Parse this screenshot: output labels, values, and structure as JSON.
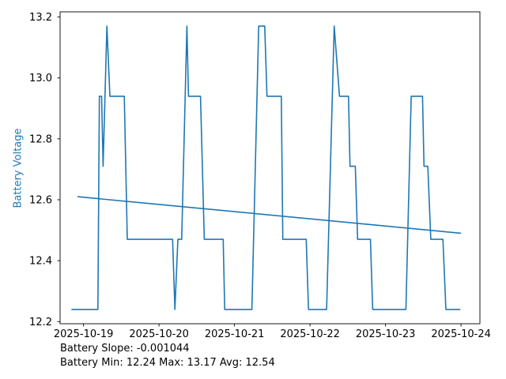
{
  "chart_data": {
    "type": "line",
    "title": "",
    "xlabel": "",
    "ylabel": "Battery Voltage",
    "x_unit": "days since 2025-10-19 00:00",
    "xlim": [
      -0.31,
      5.25
    ],
    "ylim": [
      12.193,
      13.217
    ],
    "grid": false,
    "legend": "none",
    "x_ticks": [
      {
        "t": 0,
        "label": "2025-10-19"
      },
      {
        "t": 1,
        "label": "2025-10-20"
      },
      {
        "t": 2,
        "label": "2025-10-21"
      },
      {
        "t": 3,
        "label": "2025-10-22"
      },
      {
        "t": 4,
        "label": "2025-10-23"
      },
      {
        "t": 5,
        "label": "2025-10-24"
      }
    ],
    "y_ticks": [
      {
        "v": 12.2,
        "label": "12.2"
      },
      {
        "v": 12.4,
        "label": "12.4"
      },
      {
        "v": 12.6,
        "label": "12.6"
      },
      {
        "v": 12.8,
        "label": "12.8"
      },
      {
        "v": 13.0,
        "label": "13.0"
      },
      {
        "v": 13.2,
        "label": "13.2"
      }
    ],
    "series": [
      {
        "name": "battery-voltage",
        "color": "#1f77b4",
        "width": 1.6,
        "points": [
          [
            -0.16,
            12.24
          ],
          [
            0.19,
            12.24
          ],
          [
            0.21,
            12.94
          ],
          [
            0.24,
            12.94
          ],
          [
            0.26,
            12.71
          ],
          [
            0.31,
            13.17
          ],
          [
            0.35,
            12.94
          ],
          [
            0.54,
            12.94
          ],
          [
            0.58,
            12.47
          ],
          [
            1.18,
            12.47
          ],
          [
            1.21,
            12.24
          ],
          [
            1.25,
            12.47
          ],
          [
            1.3,
            12.47
          ],
          [
            1.37,
            13.17
          ],
          [
            1.39,
            12.94
          ],
          [
            1.55,
            12.94
          ],
          [
            1.6,
            12.47
          ],
          [
            1.85,
            12.47
          ],
          [
            1.87,
            12.24
          ],
          [
            2.23,
            12.24
          ],
          [
            2.32,
            13.17
          ],
          [
            2.4,
            13.17
          ],
          [
            2.43,
            12.94
          ],
          [
            2.62,
            12.94
          ],
          [
            2.64,
            12.47
          ],
          [
            2.95,
            12.47
          ],
          [
            2.98,
            12.24
          ],
          [
            3.22,
            12.24
          ],
          [
            3.32,
            13.17
          ],
          [
            3.39,
            12.94
          ],
          [
            3.51,
            12.94
          ],
          [
            3.53,
            12.71
          ],
          [
            3.6,
            12.71
          ],
          [
            3.63,
            12.47
          ],
          [
            3.8,
            12.47
          ],
          [
            3.83,
            12.24
          ],
          [
            4.27,
            12.24
          ],
          [
            4.34,
            12.94
          ],
          [
            4.49,
            12.94
          ],
          [
            4.51,
            12.71
          ],
          [
            4.56,
            12.71
          ],
          [
            4.6,
            12.47
          ],
          [
            4.76,
            12.47
          ],
          [
            4.8,
            12.24
          ],
          [
            4.99,
            12.24
          ]
        ]
      },
      {
        "name": "trend-line",
        "color": "#1f77b4",
        "width": 1.6,
        "points": [
          [
            -0.08,
            12.61
          ],
          [
            5.0,
            12.49
          ]
        ]
      }
    ],
    "annotations": [
      {
        "text": "Battery Slope: -0.001044"
      },
      {
        "text": "Battery Min: 12.24 Max: 13.17 Avg: 12.54"
      }
    ],
    "stats": {
      "slope": -0.001044,
      "min": 12.24,
      "max": 13.17,
      "avg": 12.54
    }
  },
  "colors": {
    "line": "#1f77b4",
    "ylabel": "#1f77b4",
    "axis": "#000000",
    "tick_label": "#000000",
    "background": "#ffffff"
  }
}
